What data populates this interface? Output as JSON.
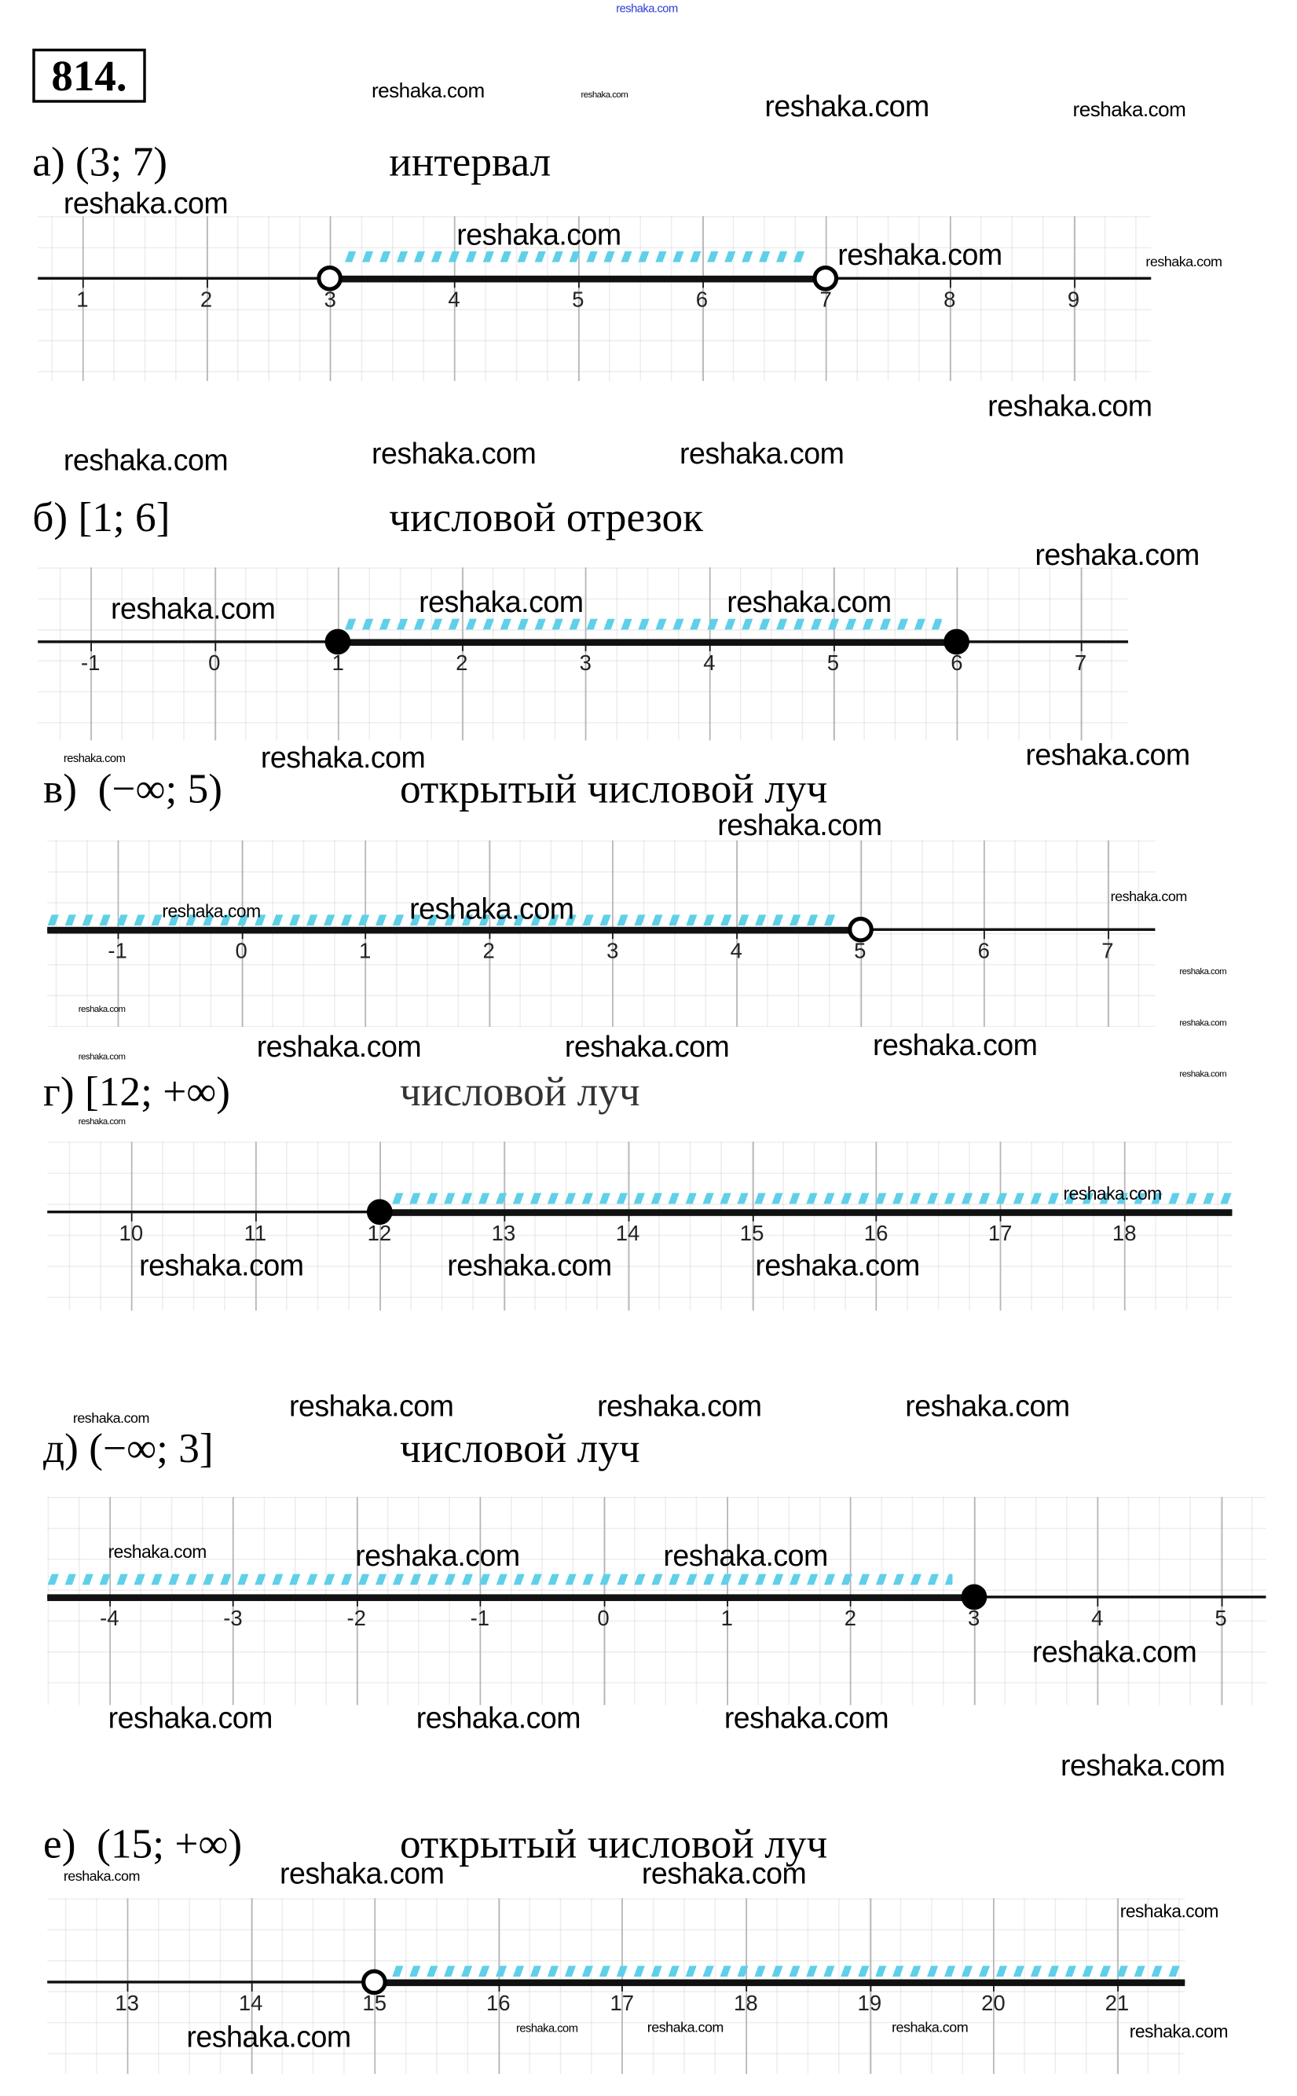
{
  "problem_number": "814.",
  "watermark": {
    "text": "reshaka.com",
    "top_color": "#2a3bd6"
  },
  "colors": {
    "hatch": "#5fd0e8",
    "axis": "#111111"
  },
  "parts": [
    {
      "letter": "а)",
      "notation": "(3; 7)",
      "name": "интервал",
      "ticks": [
        "1",
        "2",
        "3",
        "4",
        "5",
        "6",
        "7",
        "8",
        "9"
      ],
      "interval": {
        "from": 3,
        "to": 7,
        "from_type": "open",
        "to_type": "open"
      }
    },
    {
      "letter": "б)",
      "notation": "[1; 6]",
      "name": "числовой отрезок",
      "ticks": [
        "-1",
        "0",
        "1",
        "2",
        "3",
        "4",
        "5",
        "6",
        "7"
      ],
      "interval": {
        "from": 1,
        "to": 6,
        "from_type": "closed",
        "to_type": "closed"
      }
    },
    {
      "letter": "в)",
      "notation": "(−∞; 5)",
      "name": "открытый числовой луч",
      "ticks": [
        "-1",
        "0",
        "1",
        "2",
        "3",
        "4",
        "5",
        "6",
        "7"
      ],
      "interval": {
        "from": "-∞",
        "to": 5,
        "from_type": "infinite",
        "to_type": "open"
      }
    },
    {
      "letter": "г)",
      "notation": "[12; +∞)",
      "name": "числовой луч",
      "ticks": [
        "10",
        "11",
        "12",
        "13",
        "14",
        "15",
        "16",
        "17",
        "18"
      ],
      "interval": {
        "from": 12,
        "to": "+∞",
        "from_type": "closed",
        "to_type": "infinite"
      }
    },
    {
      "letter": "д)",
      "notation": "(−∞; 3]",
      "name": "числовой луч",
      "ticks": [
        "-4",
        "-3",
        "-2",
        "-1",
        "0",
        "1",
        "2",
        "3",
        "4",
        "5"
      ],
      "interval": {
        "from": "-∞",
        "to": 3,
        "from_type": "infinite",
        "to_type": "closed"
      }
    },
    {
      "letter": "е)",
      "notation": "(15; +∞)",
      "name": "открытый числовой луч",
      "ticks": [
        "13",
        "14",
        "15",
        "16",
        "17",
        "18",
        "19",
        "20",
        "21"
      ],
      "interval": {
        "from": 15,
        "to": "+∞",
        "from_type": "open",
        "to_type": "infinite"
      }
    }
  ]
}
